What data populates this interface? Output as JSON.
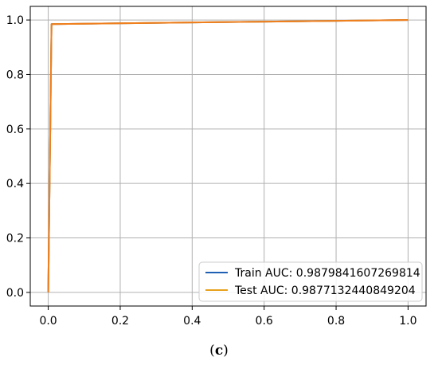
{
  "caption": {
    "open": "(",
    "letter": "c",
    "close": ")"
  },
  "chart_data": {
    "type": "line",
    "title": "",
    "xlabel": "",
    "ylabel": "",
    "xlim": [
      -0.05,
      1.05
    ],
    "ylim": [
      -0.05,
      1.05
    ],
    "xticks": [
      0.0,
      0.2,
      0.4,
      0.6,
      0.8,
      1.0
    ],
    "yticks": [
      0.0,
      0.2,
      0.4,
      0.6,
      0.8,
      1.0
    ],
    "xtick_labels": [
      "0.0",
      "0.2",
      "0.4",
      "0.6",
      "0.8",
      "1.0"
    ],
    "ytick_labels": [
      "0.0",
      "0.2",
      "0.4",
      "0.6",
      "0.8",
      "1.0"
    ],
    "grid": true,
    "legend_position": "lower-right",
    "series": [
      {
        "name": "Train AUC: 0.9879841607269814",
        "color": "#1f5fb4",
        "x": [
          0.0,
          0.009,
          1.0
        ],
        "y": [
          0.0,
          0.985,
          1.0
        ]
      },
      {
        "name": "Test AUC: 0.9877132440849204",
        "color": "#e8a21c",
        "x": [
          0.0,
          0.009,
          1.0
        ],
        "y": [
          0.0,
          0.985,
          1.0
        ]
      }
    ],
    "overlay_color": "#f07f1e"
  }
}
